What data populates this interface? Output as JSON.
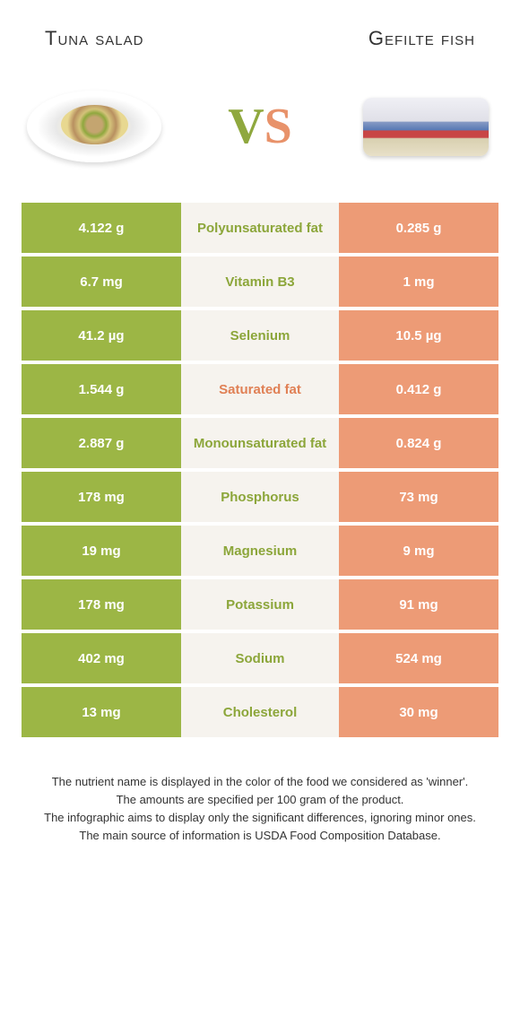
{
  "colors": {
    "left": "#9cb645",
    "right": "#ed9b76",
    "mid_bg": "#f6f3ee",
    "left_text_on_mid": "#8ca63a",
    "right_text_on_mid": "#e08055"
  },
  "header": {
    "left_title": "Tuna salad",
    "right_title": "Gefilte fish"
  },
  "vs": {
    "v": "V",
    "s": "S"
  },
  "rows": [
    {
      "left": "4.122 g",
      "label": "Polyunsaturated fat",
      "right": "0.285 g",
      "winner": "left"
    },
    {
      "left": "6.7 mg",
      "label": "Vitamin B3",
      "right": "1 mg",
      "winner": "left"
    },
    {
      "left": "41.2 µg",
      "label": "Selenium",
      "right": "10.5 µg",
      "winner": "left"
    },
    {
      "left": "1.544 g",
      "label": "Saturated fat",
      "right": "0.412 g",
      "winner": "right"
    },
    {
      "left": "2.887 g",
      "label": "Monounsaturated fat",
      "right": "0.824 g",
      "winner": "left"
    },
    {
      "left": "178 mg",
      "label": "Phosphorus",
      "right": "73 mg",
      "winner": "left"
    },
    {
      "left": "19 mg",
      "label": "Magnesium",
      "right": "9 mg",
      "winner": "left"
    },
    {
      "left": "178 mg",
      "label": "Potassium",
      "right": "91 mg",
      "winner": "left"
    },
    {
      "left": "402 mg",
      "label": "Sodium",
      "right": "524 mg",
      "winner": "left"
    },
    {
      "left": "13 mg",
      "label": "Cholesterol",
      "right": "30 mg",
      "winner": "left"
    }
  ],
  "footer": {
    "line1": "The nutrient name is displayed in the color of the food we considered as 'winner'.",
    "line2": "The amounts are specified per 100 gram of the product.",
    "line3": "The infographic aims to display only the significant differences, ignoring minor ones.",
    "line4": "The main source of information is USDA Food Composition Database."
  }
}
